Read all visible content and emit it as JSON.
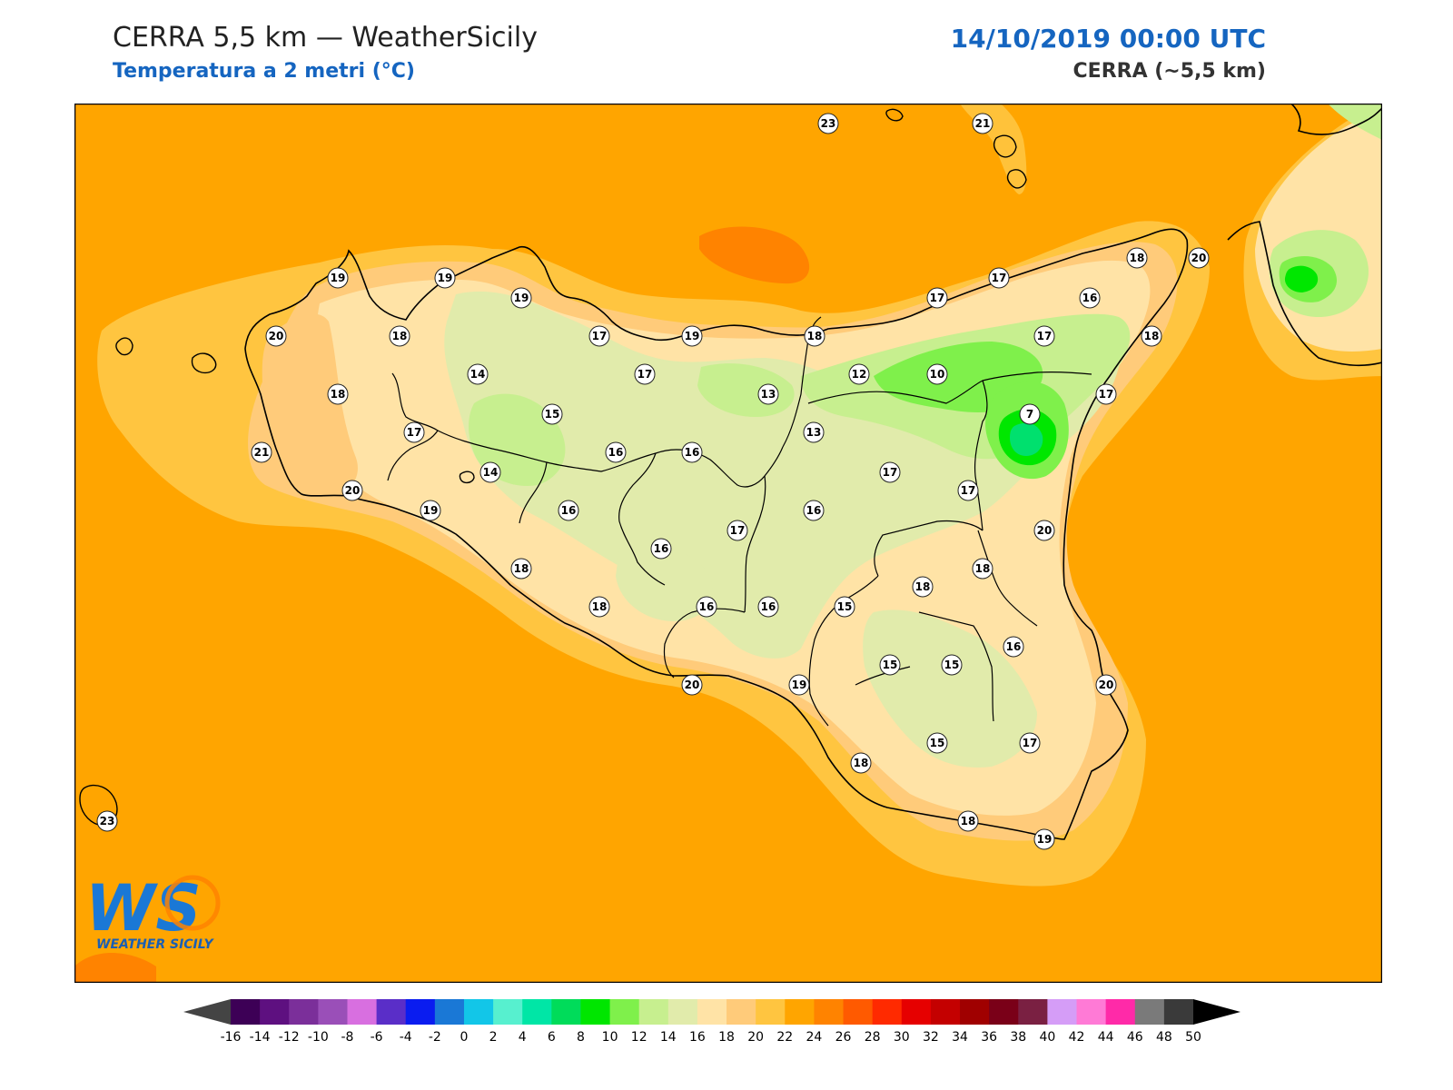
{
  "header": {
    "title": "CERRA 5,5 km — WeatherSicily",
    "subtitle": "Temperatura a 2 metri (°C)",
    "datetime": "14/10/2019 00:00 UTC",
    "model": "CERRA (~5,5 km)"
  },
  "logo": {
    "letters": "WS",
    "text": "WEATHER SICILY"
  },
  "colors": {
    "sea": "#ffa500",
    "coast_band": "#ffc540",
    "land_warm": "#ffcb7a",
    "land_mild": "#ffe3a6",
    "land_cool": "#e1ebab",
    "land_cold": "#c7ef8f",
    "green_light": "#7ff04b",
    "green": "#00e700",
    "green_core": "#00e06e",
    "sea_warm": "#ff8300",
    "border": "#000000",
    "label_bg": "#ffffff"
  },
  "colorbar": {
    "ticks": [
      "-16",
      "-14",
      "-12",
      "-10",
      "-8",
      "-6",
      "-4",
      "-2",
      "0",
      "2",
      "4",
      "6",
      "8",
      "10",
      "12",
      "14",
      "16",
      "18",
      "20",
      "22",
      "24",
      "26",
      "28",
      "30",
      "32",
      "34",
      "36",
      "38",
      "40",
      "42",
      "44",
      "46",
      "48",
      "50"
    ],
    "colors": [
      "#3d0056",
      "#5e1080",
      "#7b2f9a",
      "#9a4fb8",
      "#d86fe0",
      "#5a2ec8",
      "#0a1cf0",
      "#1a78d6",
      "#12c6e8",
      "#57f0cf",
      "#00e6a6",
      "#00dc5a",
      "#00e600",
      "#7ff04b",
      "#c7ef8f",
      "#e1ebab",
      "#ffe3a6",
      "#ffcb7a",
      "#ffc540",
      "#ffa500",
      "#ff8300",
      "#ff5a00",
      "#ff2a00",
      "#e60000",
      "#c40000",
      "#a00000",
      "#7a0018",
      "#7a2042",
      "#d59df7",
      "#ff7ad6",
      "#ff2aa8",
      "#7a7a7a",
      "#3a3a3a"
    ],
    "under_color": "#444444",
    "over_color": "#000000"
  },
  "stations": [
    {
      "value": "23"
    },
    {
      "value": "21"
    },
    {
      "value": "19"
    },
    {
      "value": "19"
    },
    {
      "value": "19"
    },
    {
      "value": "20"
    },
    {
      "value": "18"
    },
    {
      "value": "17"
    },
    {
      "value": "19"
    },
    {
      "value": "18"
    },
    {
      "value": "17"
    },
    {
      "value": "17"
    },
    {
      "value": "16"
    },
    {
      "value": "18"
    },
    {
      "value": "20"
    },
    {
      "value": "18"
    },
    {
      "value": "17"
    },
    {
      "value": "17"
    },
    {
      "value": "12"
    },
    {
      "value": "10"
    },
    {
      "value": "13"
    },
    {
      "value": "14"
    },
    {
      "value": "18"
    },
    {
      "value": "15"
    },
    {
      "value": "17"
    },
    {
      "value": "17"
    },
    {
      "value": "21"
    },
    {
      "value": "13"
    },
    {
      "value": "7"
    },
    {
      "value": "14"
    },
    {
      "value": "16"
    },
    {
      "value": "16"
    },
    {
      "value": "20"
    },
    {
      "value": "19"
    },
    {
      "value": "16"
    },
    {
      "value": "16"
    },
    {
      "value": "17"
    },
    {
      "value": "17"
    },
    {
      "value": "17"
    },
    {
      "value": "20"
    },
    {
      "value": "16"
    },
    {
      "value": "18"
    },
    {
      "value": "18"
    },
    {
      "value": "18"
    },
    {
      "value": "18"
    },
    {
      "value": "16"
    },
    {
      "value": "16"
    },
    {
      "value": "15"
    },
    {
      "value": "15"
    },
    {
      "value": "16"
    },
    {
      "value": "15"
    },
    {
      "value": "20"
    },
    {
      "value": "20"
    },
    {
      "value": "19"
    },
    {
      "value": "15"
    },
    {
      "value": "17"
    },
    {
      "value": "18"
    },
    {
      "value": "18"
    },
    {
      "value": "19"
    },
    {
      "value": "23"
    }
  ]
}
